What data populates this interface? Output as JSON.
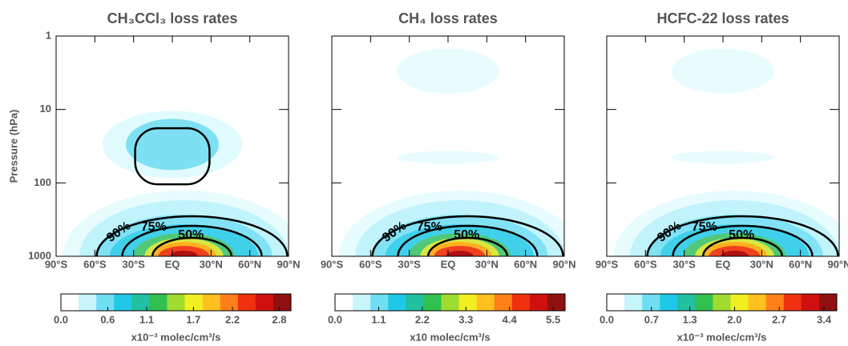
{
  "chart_data": [
    {
      "type": "contour",
      "title": "CH₃CCl₃ loss rates",
      "ylabel": "Pressure (hPa)",
      "xlim": [
        -90,
        90
      ],
      "xticks": [
        {
          "value": -90,
          "label": "90°S"
        },
        {
          "value": -60,
          "label": "60°S"
        },
        {
          "value": -30,
          "label": "30°S"
        },
        {
          "value": 0,
          "label": "EQ"
        },
        {
          "value": 30,
          "label": "30°N"
        },
        {
          "value": 60,
          "label": "60°N"
        },
        {
          "value": 90,
          "label": "90°N"
        }
      ],
      "ylim": [
        1000,
        1
      ],
      "yticks": [
        1,
        10,
        100,
        1000
      ],
      "log_y": true,
      "contour_labels": [
        "90%",
        "75%",
        "50%"
      ],
      "colorbar": {
        "label": "x10⁻³ molec/cm³/s",
        "clim": [
          0,
          2.95
        ],
        "ticks": [
          {
            "value": 0,
            "label": "0.0"
          },
          0.6,
          1.1,
          1.7,
          2.2,
          2.8
        ],
        "colors": [
          "#ffffff",
          "#c8f4fb",
          "#70def2",
          "#20c8e8",
          "#20c0a0",
          "#30c050",
          "#a0dc30",
          "#f0f020",
          "#ffc020",
          "#ff8018",
          "#f03010",
          "#d01010",
          "#901010"
        ]
      }
    },
    {
      "type": "contour",
      "title": "CH₄ loss rates",
      "xlim": [
        -90,
        90
      ],
      "xticks": [
        {
          "value": -90,
          "label": "90°S"
        },
        {
          "value": -60,
          "label": "60°S"
        },
        {
          "value": -30,
          "label": "30°S"
        },
        {
          "value": 0,
          "label": "EQ"
        },
        {
          "value": 30,
          "label": "30°N"
        },
        {
          "value": 60,
          "label": "60°N"
        },
        {
          "value": 90,
          "label": "90°N"
        }
      ],
      "ylim": [
        1000,
        1
      ],
      "yticks": [
        1,
        10,
        100,
        1000
      ],
      "log_y": true,
      "contour_labels": [
        "90%",
        "75%",
        "50%"
      ],
      "colorbar": {
        "label": "x10 molec/cm³/s",
        "clim": [
          0,
          5.8
        ],
        "ticks": [
          {
            "value": 0,
            "label": "0.0"
          },
          1.1,
          2.2,
          3.3,
          4.4,
          5.5
        ],
        "colors": [
          "#ffffff",
          "#c8f4fb",
          "#70def2",
          "#20c8e8",
          "#20c0a0",
          "#30c050",
          "#a0dc30",
          "#f0f020",
          "#ffc020",
          "#ff8018",
          "#f03010",
          "#d01010",
          "#901010"
        ]
      }
    },
    {
      "type": "contour",
      "title": "HCFC-22 loss rates",
      "xlim": [
        -90,
        90
      ],
      "xticks": [
        {
          "value": -90,
          "label": "90°S"
        },
        {
          "value": -60,
          "label": "60°S"
        },
        {
          "value": -30,
          "label": "30°S"
        },
        {
          "value": 0,
          "label": "EQ"
        },
        {
          "value": 30,
          "label": "30°N"
        },
        {
          "value": 60,
          "label": "60°N"
        },
        {
          "value": 90,
          "label": "90°N"
        }
      ],
      "ylim": [
        1000,
        1
      ],
      "yticks": [
        1,
        10,
        100,
        1000
      ],
      "log_y": true,
      "contour_labels": [
        "90%",
        "75%",
        "50%"
      ],
      "colorbar": {
        "label": "x10⁻³ molec/cm³/s",
        "clim": [
          0,
          3.6
        ],
        "ticks": [
          {
            "value": 0,
            "label": "0.0"
          },
          0.7,
          1.3,
          {
            "value": 2,
            "label": "2.0"
          },
          2.7,
          3.4
        ],
        "colors": [
          "#ffffff",
          "#c8f4fb",
          "#70def2",
          "#20c8e8",
          "#20c0a0",
          "#30c050",
          "#a0dc30",
          "#f0f020",
          "#ffc020",
          "#ff8018",
          "#f03010",
          "#d01010",
          "#901010"
        ]
      }
    }
  ]
}
